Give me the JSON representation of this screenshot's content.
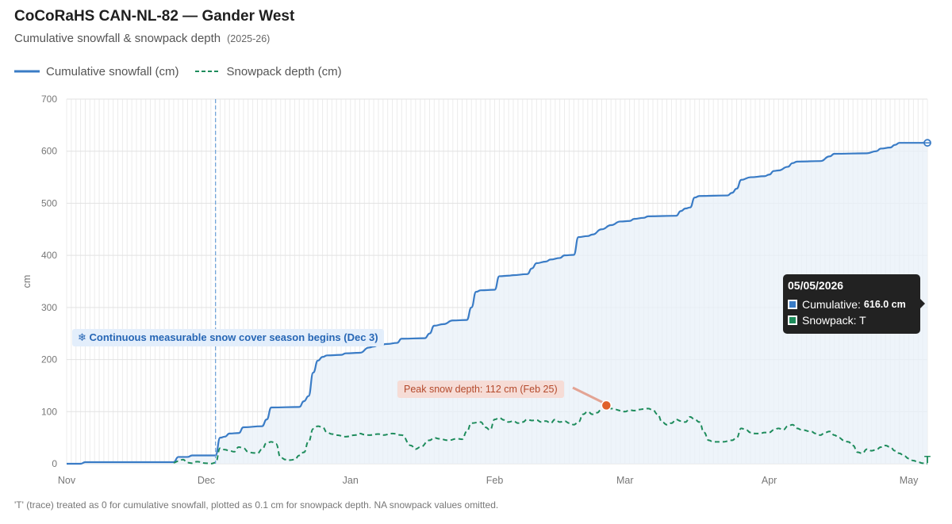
{
  "header": {
    "title": "CoCoRaHS CAN-NL-82 — Gander West",
    "subtitle": "Cumulative snowfall & snowpack depth",
    "season": "(2025-26)"
  },
  "legend": {
    "cumulative_label": "Cumulative snowfall (cm)",
    "snowpack_label": "Snowpack depth (cm)"
  },
  "footnote": "'T' (trace) treated as 0 for cumulative snowfall, plotted as 0.1 cm for snowpack depth. NA snowpack values omitted.",
  "tooltip": {
    "date": "05/05/2026",
    "cumulative_label": "Cumulative:",
    "cumulative_value": "616.0 cm",
    "snowpack_label": "Snowpack: T"
  },
  "colors": {
    "cumulative": "#3a7cc6",
    "cumulative_fill": "#e8f0f8",
    "snowpack": "#1e8c5c",
    "peak_marker": "#e0612a",
    "season_line": "#6aa0d8"
  },
  "annotations": {
    "season_start": "❄ Continuous measurable snow cover season begins (Dec 3)",
    "season_start_date": "2025-12-03",
    "peak": "Peak snow depth: 112 cm (Feb 25)",
    "peak_date": "2026-02-25",
    "peak_value": 112,
    "trace_marker": "T"
  },
  "chart_data": {
    "type": "line",
    "x_axis": {
      "type": "date",
      "range": [
        "2025-11-01",
        "2026-05-05"
      ],
      "ticks": [
        {
          "date": "2025-11-01",
          "label": "Nov"
        },
        {
          "date": "2025-12-01",
          "label": "Dec"
        },
        {
          "date": "2026-01-01",
          "label": "Jan"
        },
        {
          "date": "2026-02-01",
          "label": "Feb"
        },
        {
          "date": "2026-03-01",
          "label": "Mar"
        },
        {
          "date": "2026-04-01",
          "label": "Apr"
        },
        {
          "date": "2026-05-01",
          "label": "May"
        }
      ]
    },
    "y_axis": {
      "label": "cm",
      "range": [
        0,
        700
      ],
      "ticks": [
        0,
        100,
        200,
        300,
        400,
        500,
        600,
        700
      ]
    },
    "grid": true,
    "legend_position": "top-left",
    "series": [
      {
        "name": "Cumulative snowfall (cm)",
        "style": "solid",
        "fill": true,
        "points": [
          [
            "2025-11-01",
            0
          ],
          [
            "2025-11-04",
            0
          ],
          [
            "2025-11-05",
            3
          ],
          [
            "2025-11-24",
            3
          ],
          [
            "2025-11-25",
            13
          ],
          [
            "2025-11-27",
            13
          ],
          [
            "2025-11-28",
            16
          ],
          [
            "2025-12-03",
            16
          ],
          [
            "2025-12-04",
            50
          ],
          [
            "2025-12-05",
            52
          ],
          [
            "2025-12-06",
            58
          ],
          [
            "2025-12-08",
            59
          ],
          [
            "2025-12-09",
            70
          ],
          [
            "2025-12-13",
            72
          ],
          [
            "2025-12-14",
            85
          ],
          [
            "2025-12-15",
            108
          ],
          [
            "2025-12-21",
            109
          ],
          [
            "2025-12-22",
            120
          ],
          [
            "2025-12-23",
            130
          ],
          [
            "2025-12-24",
            175
          ],
          [
            "2025-12-25",
            198
          ],
          [
            "2025-12-26",
            205
          ],
          [
            "2025-12-27",
            208
          ],
          [
            "2025-12-30",
            209
          ],
          [
            "2025-12-31",
            212
          ],
          [
            "2026-01-03",
            213
          ],
          [
            "2026-01-05",
            223
          ],
          [
            "2026-01-06",
            225
          ],
          [
            "2026-01-07",
            228
          ],
          [
            "2026-01-09",
            230
          ],
          [
            "2026-01-11",
            232
          ],
          [
            "2026-01-12",
            240
          ],
          [
            "2026-01-17",
            241
          ],
          [
            "2026-01-18",
            250
          ],
          [
            "2026-01-19",
            265
          ],
          [
            "2026-01-21",
            268
          ],
          [
            "2026-01-23",
            275
          ],
          [
            "2026-01-26",
            276
          ],
          [
            "2026-01-27",
            300
          ],
          [
            "2026-01-28",
            330
          ],
          [
            "2026-01-29",
            333
          ],
          [
            "2026-02-01",
            334
          ],
          [
            "2026-02-02",
            360
          ],
          [
            "2026-02-04",
            361
          ],
          [
            "2026-02-05",
            362
          ],
          [
            "2026-02-08",
            364
          ],
          [
            "2026-02-09",
            375
          ],
          [
            "2026-02-10",
            385
          ],
          [
            "2026-02-12",
            388
          ],
          [
            "2026-02-13",
            392
          ],
          [
            "2026-02-15",
            395
          ],
          [
            "2026-02-16",
            400
          ],
          [
            "2026-02-18",
            401
          ],
          [
            "2026-02-19",
            435
          ],
          [
            "2026-02-21",
            437
          ],
          [
            "2026-02-22",
            440
          ],
          [
            "2026-02-24",
            450
          ],
          [
            "2026-02-26",
            458
          ],
          [
            "2026-02-28",
            465
          ],
          [
            "2026-03-02",
            466
          ],
          [
            "2026-03-03",
            470
          ],
          [
            "2026-03-05",
            472
          ],
          [
            "2026-03-06",
            475
          ],
          [
            "2026-03-12",
            476
          ],
          [
            "2026-03-13",
            485
          ],
          [
            "2026-03-14",
            490
          ],
          [
            "2026-03-15",
            492
          ],
          [
            "2026-03-16",
            511
          ],
          [
            "2026-03-17",
            514
          ],
          [
            "2026-03-23",
            515
          ],
          [
            "2026-03-24",
            520
          ],
          [
            "2026-03-25",
            528
          ],
          [
            "2026-03-26",
            545
          ],
          [
            "2026-03-28",
            550
          ],
          [
            "2026-03-31",
            552
          ],
          [
            "2026-04-01",
            555
          ],
          [
            "2026-04-02",
            562
          ],
          [
            "2026-04-03",
            563
          ],
          [
            "2026-04-05",
            570
          ],
          [
            "2026-04-06",
            577
          ],
          [
            "2026-04-07",
            580
          ],
          [
            "2026-04-12",
            581
          ],
          [
            "2026-04-14",
            590
          ],
          [
            "2026-04-15",
            595
          ],
          [
            "2026-04-22",
            596
          ],
          [
            "2026-04-24",
            600
          ],
          [
            "2026-04-25",
            605
          ],
          [
            "2026-04-27",
            607
          ],
          [
            "2026-04-28",
            612
          ],
          [
            "2026-04-29",
            616
          ],
          [
            "2026-05-05",
            616
          ]
        ]
      },
      {
        "name": "Snowpack depth (cm)",
        "style": "dashed",
        "fill": false,
        "points": [
          [
            "2025-11-24",
            2
          ],
          [
            "2025-11-25",
            5
          ],
          [
            "2025-11-26",
            8
          ],
          [
            "2025-11-27",
            2
          ],
          [
            "2025-11-28",
            1
          ],
          [
            "2025-11-29",
            4
          ],
          [
            "2025-12-01",
            1
          ],
          [
            "2025-12-02",
            0.1
          ],
          [
            "2025-12-03",
            2
          ],
          [
            "2025-12-04",
            30
          ],
          [
            "2025-12-05",
            27
          ],
          [
            "2025-12-06",
            25
          ],
          [
            "2025-12-07",
            23
          ],
          [
            "2025-12-08",
            32
          ],
          [
            "2025-12-09",
            30
          ],
          [
            "2025-12-10",
            23
          ],
          [
            "2025-12-11",
            21
          ],
          [
            "2025-12-12",
            20
          ],
          [
            "2025-12-13",
            28
          ],
          [
            "2025-12-14",
            40
          ],
          [
            "2025-12-15",
            42
          ],
          [
            "2025-12-16",
            38
          ],
          [
            "2025-12-17",
            12
          ],
          [
            "2025-12-18",
            8
          ],
          [
            "2025-12-19",
            7
          ],
          [
            "2025-12-20",
            8
          ],
          [
            "2025-12-21",
            16
          ],
          [
            "2025-12-22",
            22
          ],
          [
            "2025-12-23",
            43
          ],
          [
            "2025-12-24",
            67
          ],
          [
            "2025-12-25",
            72
          ],
          [
            "2025-12-26",
            70
          ],
          [
            "2025-12-27",
            60
          ],
          [
            "2025-12-28",
            57
          ],
          [
            "2025-12-29",
            55
          ],
          [
            "2025-12-31",
            52
          ],
          [
            "2026-01-02",
            55
          ],
          [
            "2026-01-03",
            58
          ],
          [
            "2026-01-04",
            56
          ],
          [
            "2026-01-05",
            55
          ],
          [
            "2026-01-07",
            57
          ],
          [
            "2026-01-08",
            55
          ],
          [
            "2026-01-10",
            58
          ],
          [
            "2026-01-12",
            55
          ],
          [
            "2026-01-14",
            35
          ],
          [
            "2026-01-15",
            28
          ],
          [
            "2026-01-16",
            32
          ],
          [
            "2026-01-18",
            45
          ],
          [
            "2026-01-19",
            50
          ],
          [
            "2026-01-20",
            48
          ],
          [
            "2026-01-22",
            45
          ],
          [
            "2026-01-24",
            48
          ],
          [
            "2026-01-25",
            47
          ],
          [
            "2026-01-26",
            62
          ],
          [
            "2026-01-27",
            78
          ],
          [
            "2026-01-29",
            80
          ],
          [
            "2026-01-30",
            70
          ],
          [
            "2026-01-31",
            65
          ],
          [
            "2026-02-01",
            85
          ],
          [
            "2026-02-02",
            88
          ],
          [
            "2026-02-03",
            84
          ],
          [
            "2026-02-04",
            80
          ],
          [
            "2026-02-05",
            82
          ],
          [
            "2026-02-06",
            78
          ],
          [
            "2026-02-07",
            80
          ],
          [
            "2026-02-08",
            85
          ],
          [
            "2026-02-09",
            83
          ],
          [
            "2026-02-10",
            84
          ],
          [
            "2026-02-11",
            80
          ],
          [
            "2026-02-12",
            82
          ],
          [
            "2026-02-13",
            78
          ],
          [
            "2026-02-14",
            85
          ],
          [
            "2026-02-15",
            80
          ],
          [
            "2026-02-16",
            82
          ],
          [
            "2026-02-17",
            78
          ],
          [
            "2026-02-18",
            75
          ],
          [
            "2026-02-19",
            80
          ],
          [
            "2026-02-20",
            95
          ],
          [
            "2026-02-21",
            100
          ],
          [
            "2026-02-22",
            95
          ],
          [
            "2026-02-23",
            98
          ],
          [
            "2026-02-24",
            105
          ],
          [
            "2026-02-25",
            112
          ],
          [
            "2026-02-26",
            106
          ],
          [
            "2026-02-27",
            104
          ],
          [
            "2026-02-28",
            102
          ],
          [
            "2026-03-01",
            100
          ],
          [
            "2026-03-02",
            103
          ],
          [
            "2026-03-03",
            102
          ],
          [
            "2026-03-04",
            104
          ],
          [
            "2026-03-05",
            105
          ],
          [
            "2026-03-06",
            106
          ],
          [
            "2026-03-07",
            103
          ],
          [
            "2026-03-08",
            95
          ],
          [
            "2026-03-09",
            80
          ],
          [
            "2026-03-10",
            75
          ],
          [
            "2026-03-11",
            78
          ],
          [
            "2026-03-12",
            85
          ],
          [
            "2026-03-13",
            82
          ],
          [
            "2026-03-14",
            80
          ],
          [
            "2026-03-15",
            90
          ],
          [
            "2026-03-16",
            85
          ],
          [
            "2026-03-17",
            80
          ],
          [
            "2026-03-18",
            60
          ],
          [
            "2026-03-19",
            45
          ],
          [
            "2026-03-20",
            42
          ],
          [
            "2026-03-22",
            42
          ],
          [
            "2026-03-24",
            45
          ],
          [
            "2026-03-25",
            50
          ],
          [
            "2026-03-26",
            68
          ],
          [
            "2026-03-27",
            65
          ],
          [
            "2026-03-28",
            60
          ],
          [
            "2026-03-29",
            58
          ],
          [
            "2026-03-30",
            58
          ],
          [
            "2026-03-31",
            60
          ],
          [
            "2026-04-01",
            60
          ],
          [
            "2026-04-02",
            65
          ],
          [
            "2026-04-03",
            68
          ],
          [
            "2026-04-04",
            65
          ],
          [
            "2026-04-05",
            72
          ],
          [
            "2026-04-06",
            75
          ],
          [
            "2026-04-07",
            68
          ],
          [
            "2026-04-08",
            65
          ],
          [
            "2026-04-10",
            62
          ],
          [
            "2026-04-11",
            58
          ],
          [
            "2026-04-12",
            55
          ],
          [
            "2026-04-13",
            60
          ],
          [
            "2026-04-14",
            62
          ],
          [
            "2026-04-15",
            55
          ],
          [
            "2026-04-16",
            50
          ],
          [
            "2026-04-17",
            45
          ],
          [
            "2026-04-18",
            42
          ],
          [
            "2026-04-19",
            35
          ],
          [
            "2026-04-20",
            22
          ],
          [
            "2026-04-21",
            20
          ],
          [
            "2026-04-22",
            28
          ],
          [
            "2026-04-23",
            25
          ],
          [
            "2026-04-24",
            27
          ],
          [
            "2026-04-25",
            32
          ],
          [
            "2026-04-26",
            35
          ],
          [
            "2026-04-27",
            32
          ],
          [
            "2026-04-28",
            25
          ],
          [
            "2026-04-29",
            20
          ],
          [
            "2026-04-30",
            15
          ],
          [
            "2026-05-01",
            10
          ],
          [
            "2026-05-02",
            6
          ],
          [
            "2026-05-03",
            3
          ],
          [
            "2026-05-04",
            1
          ],
          [
            "2026-05-05",
            0.1
          ]
        ]
      }
    ]
  }
}
